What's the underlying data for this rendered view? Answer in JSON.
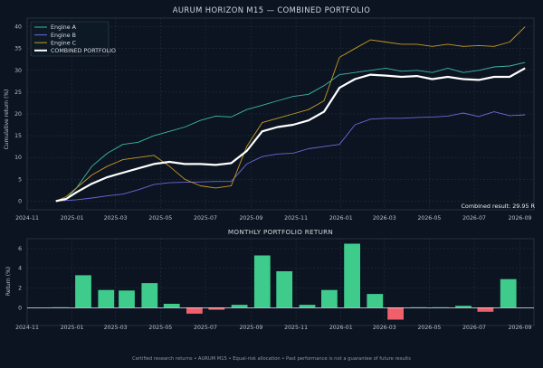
{
  "footer": "Certified research returns • AURUM M15 • Equal-risk allocation • Past performance is not a guarantee of future results",
  "colors": {
    "background": "#0b1420",
    "grid": "#2a3644",
    "engine_a": "#3fb7a6",
    "engine_b": "#6c6bd8",
    "engine_c": "#c99a24",
    "combined": "#ffffff",
    "positive_bar": "#3ecb8c",
    "negative_bar": "#f0606a"
  },
  "chart_data": [
    {
      "type": "line",
      "title": "AURUM HORIZON M15 — COMBINED PORTFOLIO",
      "ylabel": "Cumulative return (%)",
      "xlabel": "",
      "ylim": [
        -2,
        42
      ],
      "xlim": [
        "2024-11-01",
        "2026-09-20"
      ],
      "x_ticks": [
        "2024-11",
        "2025-01",
        "2025-03",
        "2025-05",
        "2025-07",
        "2025-09",
        "2025-11",
        "2026-01",
        "2026-03",
        "2026-05",
        "2026-07",
        "2026-09"
      ],
      "y_ticks": [
        0,
        5,
        10,
        15,
        20,
        25,
        30,
        35,
        40
      ],
      "grid": true,
      "legend": "top-left",
      "annotation": "Combined result: 29.95 R",
      "series": [
        {
          "name": "Engine A",
          "color": "#3fb7a6",
          "points": [
            [
              "2024-12-10",
              0
            ],
            [
              "2024-12-24",
              0.5
            ],
            [
              "2025-01-07",
              3
            ],
            [
              "2025-01-28",
              8
            ],
            [
              "2025-02-18",
              11
            ],
            [
              "2025-03-11",
              13
            ],
            [
              "2025-04-01",
              13.5
            ],
            [
              "2025-04-22",
              15
            ],
            [
              "2025-05-13",
              16
            ],
            [
              "2025-06-03",
              17
            ],
            [
              "2025-06-24",
              18.5
            ],
            [
              "2025-07-15",
              19.5
            ],
            [
              "2025-08-05",
              19.3
            ],
            [
              "2025-08-26",
              21
            ],
            [
              "2025-09-16",
              22
            ],
            [
              "2025-10-07",
              23
            ],
            [
              "2025-10-28",
              24
            ],
            [
              "2025-11-18",
              24.5
            ],
            [
              "2025-12-09",
              26.5
            ],
            [
              "2025-12-30",
              29
            ],
            [
              "2026-01-20",
              29.5
            ],
            [
              "2026-02-10",
              30
            ],
            [
              "2026-03-03",
              30.5
            ],
            [
              "2026-03-24",
              29.8
            ],
            [
              "2026-04-14",
              30
            ],
            [
              "2026-05-05",
              29.5
            ],
            [
              "2026-05-26",
              30.5
            ],
            [
              "2026-06-16",
              29.5
            ],
            [
              "2026-07-07",
              30
            ],
            [
              "2026-07-28",
              30.8
            ],
            [
              "2026-08-18",
              31
            ],
            [
              "2026-09-08",
              31.8
            ]
          ]
        },
        {
          "name": "Engine B",
          "color": "#6c6bd8",
          "points": [
            [
              "2024-12-10",
              0
            ],
            [
              "2025-01-07",
              0.3
            ],
            [
              "2025-01-28",
              0.7
            ],
            [
              "2025-02-18",
              1.2
            ],
            [
              "2025-03-11",
              1.6
            ],
            [
              "2025-04-01",
              2.6
            ],
            [
              "2025-04-22",
              3.8
            ],
            [
              "2025-05-13",
              4.2
            ],
            [
              "2025-06-03",
              4.3
            ],
            [
              "2025-06-24",
              4.4
            ],
            [
              "2025-07-15",
              4.5
            ],
            [
              "2025-08-05",
              4.5
            ],
            [
              "2025-08-26",
              8.5
            ],
            [
              "2025-09-16",
              10.2
            ],
            [
              "2025-10-07",
              10.8
            ],
            [
              "2025-10-28",
              11
            ],
            [
              "2025-11-18",
              12
            ],
            [
              "2025-12-09",
              12.5
            ],
            [
              "2025-12-30",
              13
            ],
            [
              "2026-01-20",
              17.5
            ],
            [
              "2026-02-10",
              18.8
            ],
            [
              "2026-03-03",
              19
            ],
            [
              "2026-03-24",
              19
            ],
            [
              "2026-04-14",
              19.2
            ],
            [
              "2026-05-05",
              19.3
            ],
            [
              "2026-05-26",
              19.5
            ],
            [
              "2026-06-16",
              20.2
            ],
            [
              "2026-07-07",
              19.4
            ],
            [
              "2026-07-28",
              20.5
            ],
            [
              "2026-08-18",
              19.6
            ],
            [
              "2026-09-08",
              19.8
            ]
          ]
        },
        {
          "name": "Engine C",
          "color": "#c99a24",
          "points": [
            [
              "2024-12-10",
              0
            ],
            [
              "2024-12-24",
              1
            ],
            [
              "2025-01-07",
              3
            ],
            [
              "2025-01-28",
              6
            ],
            [
              "2025-02-18",
              8
            ],
            [
              "2025-03-11",
              9.5
            ],
            [
              "2025-04-01",
              10
            ],
            [
              "2025-04-22",
              10.5
            ],
            [
              "2025-05-13",
              8
            ],
            [
              "2025-06-03",
              5
            ],
            [
              "2025-06-24",
              3.5
            ],
            [
              "2025-07-15",
              3
            ],
            [
              "2025-08-05",
              3.5
            ],
            [
              "2025-08-26",
              12.5
            ],
            [
              "2025-09-16",
              18
            ],
            [
              "2025-10-07",
              19
            ],
            [
              "2025-10-28",
              20
            ],
            [
              "2025-11-18",
              21
            ],
            [
              "2025-12-09",
              23
            ],
            [
              "2025-12-30",
              33
            ],
            [
              "2026-01-20",
              35
            ],
            [
              "2026-02-10",
              37
            ],
            [
              "2026-03-03",
              36.5
            ],
            [
              "2026-03-24",
              36
            ],
            [
              "2026-04-14",
              36
            ],
            [
              "2026-05-05",
              35.5
            ],
            [
              "2026-05-26",
              36
            ],
            [
              "2026-06-16",
              35.5
            ],
            [
              "2026-07-07",
              35.7
            ],
            [
              "2026-07-28",
              35.5
            ],
            [
              "2026-08-18",
              36.5
            ],
            [
              "2026-09-08",
              40
            ]
          ]
        },
        {
          "name": "COMBINED PORTFOLIO",
          "color": "#ffffff",
          "points": [
            [
              "2024-12-10",
              0
            ],
            [
              "2024-12-24",
              0.5
            ],
            [
              "2025-01-07",
              2
            ],
            [
              "2025-01-28",
              4
            ],
            [
              "2025-02-18",
              5.5
            ],
            [
              "2025-03-11",
              6.5
            ],
            [
              "2025-04-01",
              7.5
            ],
            [
              "2025-04-22",
              8.5
            ],
            [
              "2025-05-13",
              9
            ],
            [
              "2025-06-03",
              8.5
            ],
            [
              "2025-06-24",
              8.5
            ],
            [
              "2025-07-15",
              8.3
            ],
            [
              "2025-08-05",
              8.7
            ],
            [
              "2025-08-26",
              11.5
            ],
            [
              "2025-09-16",
              16
            ],
            [
              "2025-10-07",
              17
            ],
            [
              "2025-10-28",
              17.5
            ],
            [
              "2025-11-18",
              18.5
            ],
            [
              "2025-12-09",
              20.5
            ],
            [
              "2025-12-30",
              26
            ],
            [
              "2026-01-20",
              28
            ],
            [
              "2026-02-10",
              29
            ],
            [
              "2026-03-03",
              28.8
            ],
            [
              "2026-03-24",
              28.5
            ],
            [
              "2026-04-14",
              28.7
            ],
            [
              "2026-05-05",
              28
            ],
            [
              "2026-05-26",
              28.5
            ],
            [
              "2026-06-16",
              28
            ],
            [
              "2026-07-07",
              27.8
            ],
            [
              "2026-07-28",
              28.5
            ],
            [
              "2026-08-18",
              28.5
            ],
            [
              "2026-09-08",
              30.5
            ]
          ]
        }
      ]
    },
    {
      "type": "bar",
      "title": "MONTHLY PORTFOLIO RETURN",
      "ylabel": "Return (%)",
      "xlabel": "",
      "ylim": [
        -1.8,
        7
      ],
      "xlim": [
        "2024-11-01",
        "2026-09-20"
      ],
      "x_ticks": [
        "2024-11",
        "2025-01",
        "2025-03",
        "2025-05",
        "2025-07",
        "2025-09",
        "2025-11",
        "2026-01",
        "2026-03",
        "2026-05",
        "2026-07",
        "2026-09"
      ],
      "y_ticks": [
        0,
        2,
        4,
        6
      ],
      "grid": true,
      "categories": [
        "2024-12",
        "2025-01",
        "2025-02",
        "2025-03",
        "2025-04",
        "2025-05",
        "2025-06",
        "2025-07",
        "2025-08",
        "2025-09",
        "2025-10",
        "2025-11",
        "2025-12",
        "2026-01",
        "2026-02",
        "2026-03",
        "2026-04",
        "2026-05",
        "2026-06",
        "2026-07",
        "2026-08"
      ],
      "values": [
        0.05,
        3.3,
        1.8,
        1.75,
        2.5,
        0.4,
        -0.6,
        -0.2,
        0.3,
        5.3,
        3.7,
        0.3,
        1.8,
        6.5,
        1.4,
        -1.2,
        0.05,
        0.05,
        0.2,
        -0.4,
        2.9
      ]
    }
  ]
}
